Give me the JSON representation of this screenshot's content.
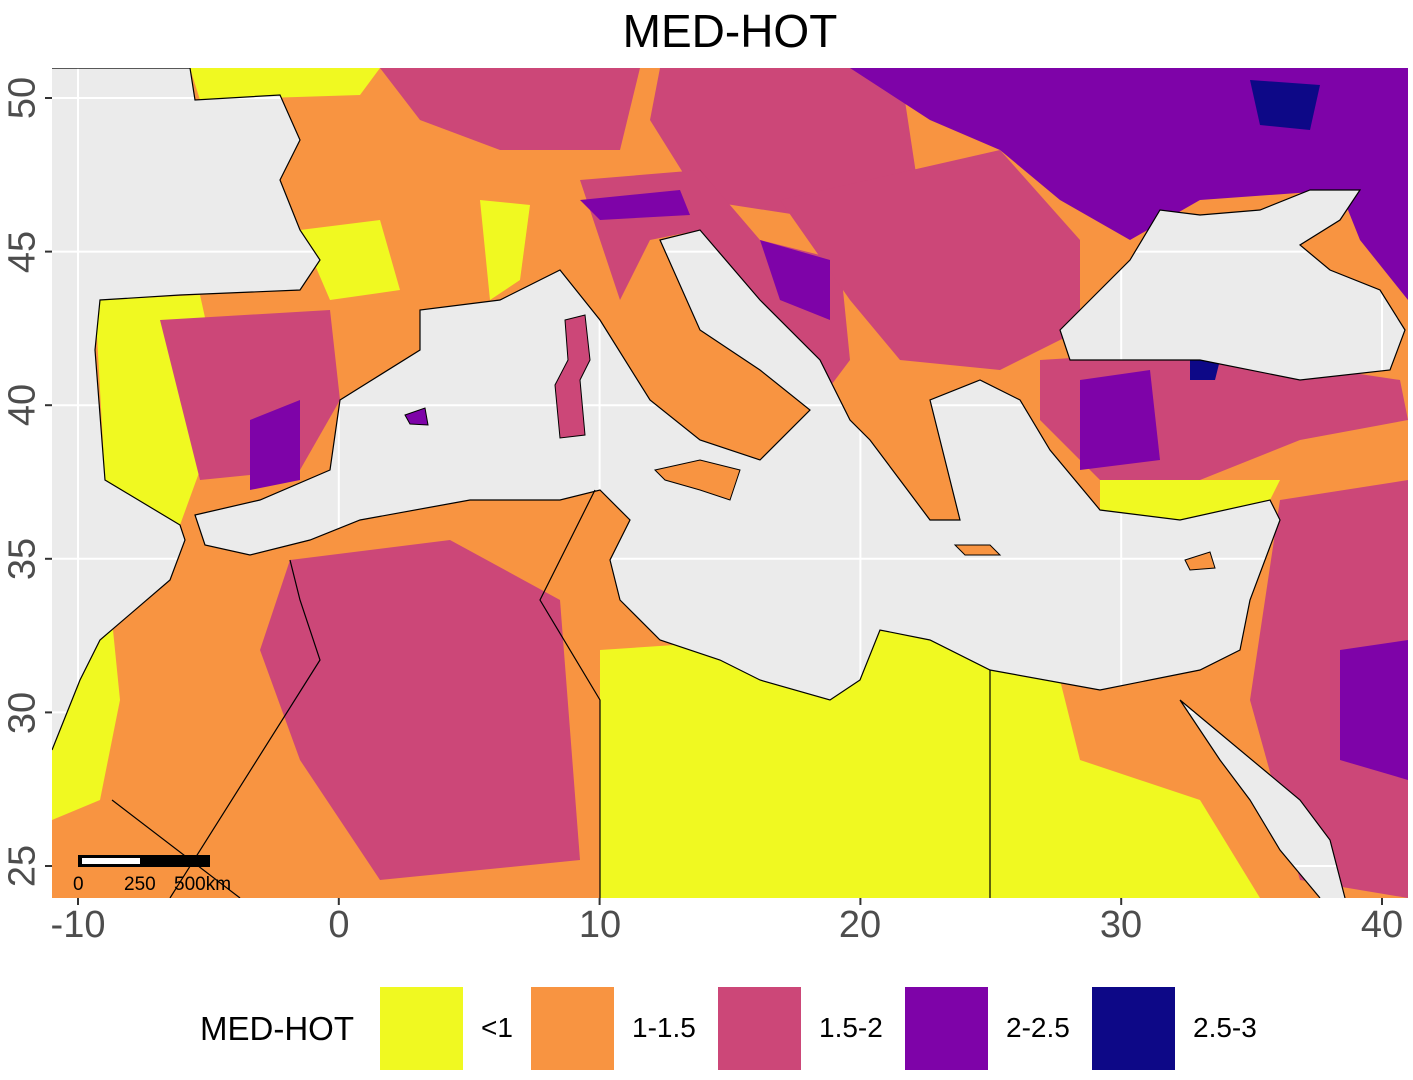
{
  "title": "MED-HOT",
  "chart_data": {
    "type": "heatmap",
    "title": "MED-HOT",
    "xlabel": "",
    "ylabel": "",
    "xlim": [
      -11,
      41
    ],
    "ylim": [
      24,
      51
    ],
    "x_ticks": [
      "-10",
      "0",
      "10",
      "20",
      "30",
      "40"
    ],
    "y_ticks": [
      "25",
      "30",
      "35",
      "40",
      "45",
      "50"
    ],
    "grid": true,
    "legend": {
      "title": "MED-HOT",
      "placement": "bottom",
      "items": [
        {
          "label": "<1",
          "color": "#F0F921"
        },
        {
          "label": "1-1.5",
          "color": "#F89441"
        },
        {
          "label": "1.5-2",
          "color": "#CC4778"
        },
        {
          "label": "2-2.5",
          "color": "#7E03A8"
        },
        {
          "label": "2.5-3",
          "color": "#0D0887"
        }
      ]
    },
    "scale_bar": {
      "labels": [
        "0",
        "250",
        "500km"
      ]
    },
    "background_color": "#EBEBEB"
  }
}
